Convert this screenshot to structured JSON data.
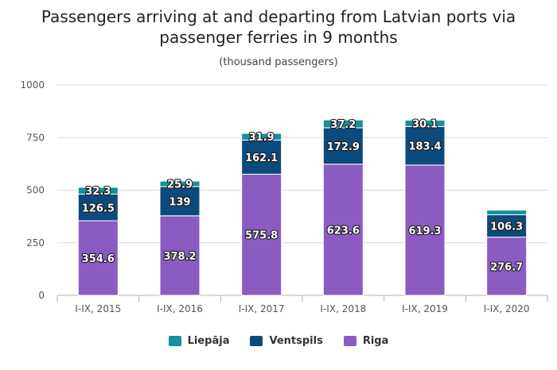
{
  "chart_data": {
    "type": "bar",
    "stacked": true,
    "title": "Passengers arriving at and departing from Latvian ports via passenger ferries in 9 months",
    "subtitle": "(thousand passengers)",
    "categories": [
      "I-IX, 2015",
      "I-IX, 2016",
      "I-IX, 2017",
      "I-IX, 2018",
      "I-IX, 2019",
      "I-IX, 2020"
    ],
    "ylim": [
      0,
      1000
    ],
    "yticks": [
      0,
      250,
      500,
      750,
      1000
    ],
    "grid": true,
    "legend_position": "bottom",
    "series": [
      {
        "name": "Riga",
        "color": "#8a5cc2",
        "values": [
          354.6,
          378.2,
          575.8,
          623.6,
          619.3,
          276.7
        ],
        "labels": [
          "354.6",
          "378.2",
          "575.8",
          "623.6",
          "619.3",
          "276.7"
        ]
      },
      {
        "name": "Ventspils",
        "color": "#0b4a7c",
        "values": [
          126.5,
          139,
          162.1,
          172.9,
          183.4,
          106.3
        ],
        "labels": [
          "126.5",
          "139",
          "162.1",
          "172.9",
          "183.4",
          "106.3"
        ]
      },
      {
        "name": "Liepāja",
        "color": "#14919b",
        "values": [
          32.3,
          25.9,
          31.9,
          37.2,
          30.1,
          22
        ],
        "labels": [
          "32.3",
          "25.9",
          "31.9",
          "37.2",
          "30.1",
          ""
        ]
      }
    ],
    "legend_order": [
      "Liepāja",
      "Ventspils",
      "Riga"
    ]
  }
}
